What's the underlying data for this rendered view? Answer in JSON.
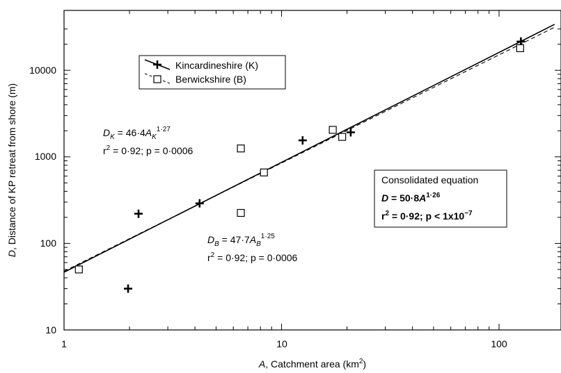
{
  "chart_data": {
    "type": "scatter",
    "x_scale": "log",
    "y_scale": "log",
    "xlim": [
      1,
      180
    ],
    "ylim": [
      10,
      38000
    ],
    "xlabel": {
      "var": "A",
      "rest": ", Catchment area (km",
      "sup": "2",
      "close": ")"
    },
    "ylabel": {
      "var": "D",
      "rest": ", Distance of KP retreat from shore (m)"
    },
    "x_ticks": [
      1,
      10,
      100
    ],
    "x_tick_labels": [
      "1",
      "10",
      "100"
    ],
    "y_ticks": [
      10,
      100,
      1000,
      10000
    ],
    "y_tick_labels": [
      "10",
      "100",
      "1000",
      "10000"
    ],
    "grid": false,
    "legend": {
      "position": "top-left",
      "entries": [
        "Kincardineshire (K)",
        "Berwickshire (B)"
      ]
    },
    "series": [
      {
        "name": "Kincardineshire (K)",
        "marker": "plus",
        "line": "solid",
        "fit": {
          "a": 46.4,
          "b": 1.27
        },
        "points": [
          {
            "x": 1.97,
            "y": 30
          },
          {
            "x": 2.2,
            "y": 220
          },
          {
            "x": 4.2,
            "y": 290
          },
          {
            "x": 12.5,
            "y": 1550
          },
          {
            "x": 20.8,
            "y": 1920
          },
          {
            "x": 126,
            "y": 21500
          }
        ]
      },
      {
        "name": "Berwickshire (B)",
        "marker": "square",
        "line": "dashed",
        "fit": {
          "a": 47.7,
          "b": 1.25
        },
        "points": [
          {
            "x": 1.17,
            "y": 50
          },
          {
            "x": 6.5,
            "y": 1250
          },
          {
            "x": 6.5,
            "y": 225
          },
          {
            "x": 8.3,
            "y": 660
          },
          {
            "x": 17.2,
            "y": 2050
          },
          {
            "x": 19,
            "y": 1700
          },
          {
            "x": 125,
            "y": 18000
          }
        ]
      }
    ],
    "annotations": {
      "eq_k": {
        "d": "D",
        "sub": "K",
        "mid": " = 46·4",
        "a": "A",
        "asub": "K",
        "exp": "1·27"
      },
      "stats_k": {
        "pre": "r",
        "sup": "2",
        "post": " = 0·92; p = 0·0006"
      },
      "eq_b": {
        "d": "D",
        "sub": "B",
        "mid": " = 47·7",
        "a": "A",
        "asub": "B",
        "exp": "1·25"
      },
      "stats_b": {
        "pre": "r",
        "sup": "2",
        "post": " = 0·92; p = 0·0006"
      },
      "box_title": "Consolidated equation",
      "box_eq": {
        "d": "D",
        "mid": " = 50·8",
        "a": "A",
        "exp": "1·26"
      },
      "box_stats": {
        "pre": "r",
        "sup": "2",
        "mid": " = 0·92; p < 1x10",
        "exp": "−7"
      }
    }
  }
}
